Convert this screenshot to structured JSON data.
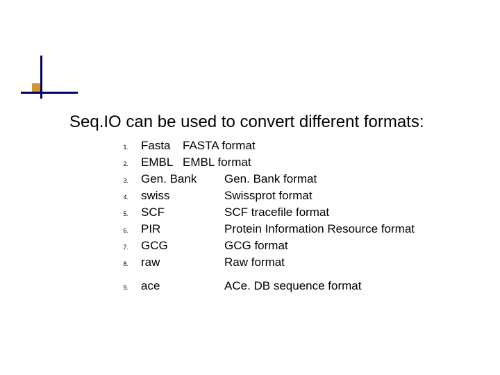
{
  "title": "Seq.IO can be used to convert different formats:",
  "colors": {
    "bar": "#000066",
    "square": "#cc9933",
    "text": "#000000",
    "background": "#ffffff"
  },
  "typography": {
    "title_fontsize": 24,
    "list_fontsize": 17,
    "number_fontsize": 9
  },
  "items": [
    {
      "n": "1.",
      "name": "Fasta",
      "desc": "FASTA format",
      "narrow": true
    },
    {
      "n": "2.",
      "name": "EMBL",
      "desc": "EMBL format",
      "narrow": true
    },
    {
      "n": "3.",
      "name": "Gen. Bank",
      "desc": "Gen. Bank format"
    },
    {
      "n": "4.",
      "name": "swiss",
      "desc": "Swissprot format"
    },
    {
      "n": "5.",
      "name": "SCF",
      "desc": "SCF tracefile format"
    },
    {
      "n": "6.",
      "name": "PIR",
      "desc": "Protein Information Resource format"
    },
    {
      "n": "7.",
      "name": "GCG",
      "desc": "GCG format"
    },
    {
      "n": "8.",
      "name": "raw",
      "desc": "Raw format"
    },
    {
      "n": "9.",
      "name": "ace",
      "desc": "ACe. DB sequence format",
      "gap_before": true
    }
  ]
}
